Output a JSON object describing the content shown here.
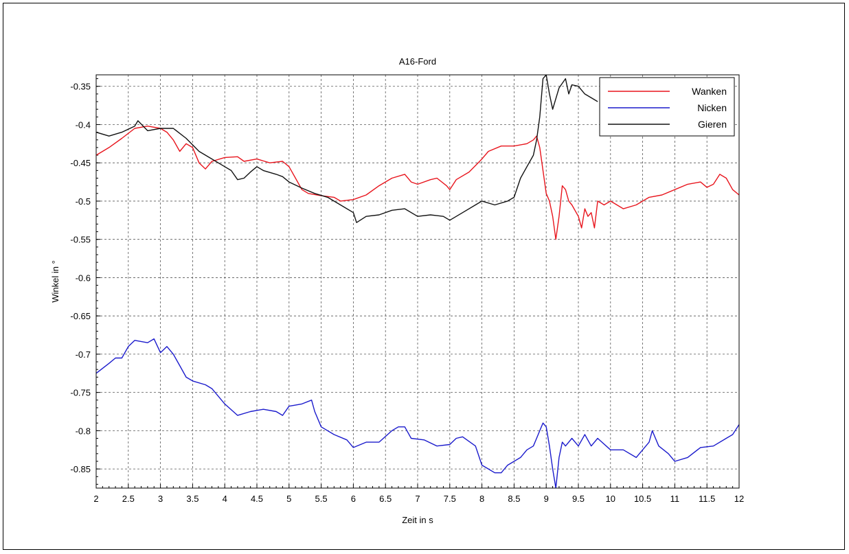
{
  "chart_data": {
    "type": "line",
    "title": "A16-Ford",
    "xlabel": "Zeit in s",
    "ylabel": "Winkel in °",
    "xlim": [
      2,
      12
    ],
    "ylim": [
      -0.875,
      -0.335
    ],
    "grid": true,
    "legend_position": "top-right",
    "x_ticks": [
      "2",
      "2.5",
      "3",
      "3.5",
      "4",
      "4.5",
      "5",
      "5.5",
      "6",
      "6.5",
      "7",
      "7.5",
      "8",
      "8.5",
      "9",
      "9.5",
      "10",
      "10.5",
      "11",
      "11.5",
      "12"
    ],
    "y_ticks": [
      "-0.35",
      "-0.4",
      "-0.45",
      "-0.5",
      "-0.55",
      "-0.6",
      "-0.65",
      "-0.7",
      "-0.75",
      "-0.8",
      "-0.85"
    ],
    "series": [
      {
        "name": "Wanken",
        "color": "#e8141c",
        "points": [
          [
            2.0,
            -0.44
          ],
          [
            2.2,
            -0.43
          ],
          [
            2.4,
            -0.418
          ],
          [
            2.6,
            -0.405
          ],
          [
            2.8,
            -0.402
          ],
          [
            3.0,
            -0.405
          ],
          [
            3.1,
            -0.41
          ],
          [
            3.2,
            -0.42
          ],
          [
            3.3,
            -0.435
          ],
          [
            3.4,
            -0.425
          ],
          [
            3.5,
            -0.43
          ],
          [
            3.6,
            -0.45
          ],
          [
            3.7,
            -0.458
          ],
          [
            3.8,
            -0.448
          ],
          [
            4.0,
            -0.443
          ],
          [
            4.2,
            -0.442
          ],
          [
            4.3,
            -0.448
          ],
          [
            4.5,
            -0.445
          ],
          [
            4.7,
            -0.45
          ],
          [
            4.9,
            -0.448
          ],
          [
            5.0,
            -0.455
          ],
          [
            5.1,
            -0.47
          ],
          [
            5.2,
            -0.485
          ],
          [
            5.3,
            -0.49
          ],
          [
            5.5,
            -0.493
          ],
          [
            5.7,
            -0.495
          ],
          [
            5.8,
            -0.5
          ],
          [
            6.0,
            -0.498
          ],
          [
            6.2,
            -0.492
          ],
          [
            6.4,
            -0.48
          ],
          [
            6.6,
            -0.47
          ],
          [
            6.8,
            -0.465
          ],
          [
            6.9,
            -0.475
          ],
          [
            7.0,
            -0.478
          ],
          [
            7.2,
            -0.472
          ],
          [
            7.3,
            -0.47
          ],
          [
            7.45,
            -0.48
          ],
          [
            7.5,
            -0.485
          ],
          [
            7.6,
            -0.472
          ],
          [
            7.8,
            -0.462
          ],
          [
            8.0,
            -0.445
          ],
          [
            8.1,
            -0.435
          ],
          [
            8.3,
            -0.428
          ],
          [
            8.5,
            -0.428
          ],
          [
            8.7,
            -0.425
          ],
          [
            8.8,
            -0.42
          ],
          [
            8.85,
            -0.415
          ],
          [
            8.9,
            -0.43
          ],
          [
            8.95,
            -0.46
          ],
          [
            9.0,
            -0.49
          ],
          [
            9.05,
            -0.5
          ],
          [
            9.1,
            -0.52
          ],
          [
            9.15,
            -0.55
          ],
          [
            9.2,
            -0.52
          ],
          [
            9.25,
            -0.48
          ],
          [
            9.3,
            -0.485
          ],
          [
            9.35,
            -0.5
          ],
          [
            9.4,
            -0.505
          ],
          [
            9.5,
            -0.52
          ],
          [
            9.55,
            -0.535
          ],
          [
            9.6,
            -0.51
          ],
          [
            9.65,
            -0.52
          ],
          [
            9.7,
            -0.515
          ],
          [
            9.75,
            -0.535
          ],
          [
            9.8,
            -0.5
          ],
          [
            9.9,
            -0.505
          ],
          [
            10.0,
            -0.5
          ],
          [
            10.2,
            -0.51
          ],
          [
            10.4,
            -0.505
          ],
          [
            10.6,
            -0.495
          ],
          [
            10.8,
            -0.492
          ],
          [
            11.0,
            -0.485
          ],
          [
            11.2,
            -0.478
          ],
          [
            11.4,
            -0.475
          ],
          [
            11.5,
            -0.482
          ],
          [
            11.6,
            -0.478
          ],
          [
            11.7,
            -0.465
          ],
          [
            11.8,
            -0.47
          ],
          [
            11.9,
            -0.485
          ],
          [
            12.0,
            -0.492
          ]
        ]
      },
      {
        "name": "Nicken",
        "color": "#1a1acc",
        "points": [
          [
            2.0,
            -0.725
          ],
          [
            2.2,
            -0.712
          ],
          [
            2.3,
            -0.705
          ],
          [
            2.4,
            -0.705
          ],
          [
            2.5,
            -0.69
          ],
          [
            2.6,
            -0.682
          ],
          [
            2.8,
            -0.685
          ],
          [
            2.9,
            -0.68
          ],
          [
            3.0,
            -0.698
          ],
          [
            3.1,
            -0.69
          ],
          [
            3.2,
            -0.7
          ],
          [
            3.3,
            -0.715
          ],
          [
            3.4,
            -0.73
          ],
          [
            3.5,
            -0.735
          ],
          [
            3.7,
            -0.74
          ],
          [
            3.8,
            -0.745
          ],
          [
            3.9,
            -0.755
          ],
          [
            4.0,
            -0.765
          ],
          [
            4.2,
            -0.78
          ],
          [
            4.4,
            -0.775
          ],
          [
            4.6,
            -0.772
          ],
          [
            4.8,
            -0.775
          ],
          [
            4.9,
            -0.78
          ],
          [
            5.0,
            -0.768
          ],
          [
            5.2,
            -0.765
          ],
          [
            5.35,
            -0.76
          ],
          [
            5.4,
            -0.775
          ],
          [
            5.5,
            -0.795
          ],
          [
            5.7,
            -0.805
          ],
          [
            5.9,
            -0.812
          ],
          [
            6.0,
            -0.822
          ],
          [
            6.2,
            -0.815
          ],
          [
            6.4,
            -0.815
          ],
          [
            6.6,
            -0.8
          ],
          [
            6.7,
            -0.795
          ],
          [
            6.8,
            -0.795
          ],
          [
            6.9,
            -0.81
          ],
          [
            7.1,
            -0.812
          ],
          [
            7.3,
            -0.82
          ],
          [
            7.5,
            -0.818
          ],
          [
            7.6,
            -0.81
          ],
          [
            7.7,
            -0.808
          ],
          [
            7.9,
            -0.82
          ],
          [
            8.0,
            -0.845
          ],
          [
            8.1,
            -0.85
          ],
          [
            8.2,
            -0.855
          ],
          [
            8.3,
            -0.855
          ],
          [
            8.4,
            -0.845
          ],
          [
            8.5,
            -0.84
          ],
          [
            8.6,
            -0.835
          ],
          [
            8.7,
            -0.825
          ],
          [
            8.8,
            -0.82
          ],
          [
            8.85,
            -0.81
          ],
          [
            8.9,
            -0.8
          ],
          [
            8.95,
            -0.79
          ],
          [
            9.0,
            -0.795
          ],
          [
            9.05,
            -0.82
          ],
          [
            9.1,
            -0.85
          ],
          [
            9.15,
            -0.875
          ],
          [
            9.2,
            -0.835
          ],
          [
            9.25,
            -0.815
          ],
          [
            9.3,
            -0.82
          ],
          [
            9.4,
            -0.81
          ],
          [
            9.5,
            -0.82
          ],
          [
            9.6,
            -0.805
          ],
          [
            9.7,
            -0.82
          ],
          [
            9.8,
            -0.81
          ],
          [
            10.0,
            -0.825
          ],
          [
            10.2,
            -0.825
          ],
          [
            10.4,
            -0.835
          ],
          [
            10.6,
            -0.815
          ],
          [
            10.65,
            -0.8
          ],
          [
            10.75,
            -0.82
          ],
          [
            10.9,
            -0.83
          ],
          [
            11.0,
            -0.84
          ],
          [
            11.2,
            -0.835
          ],
          [
            11.4,
            -0.822
          ],
          [
            11.6,
            -0.82
          ],
          [
            11.8,
            -0.81
          ],
          [
            11.9,
            -0.805
          ],
          [
            12.0,
            -0.792
          ]
        ]
      },
      {
        "name": "Gieren",
        "color": "#111111",
        "points": [
          [
            2.0,
            -0.41
          ],
          [
            2.2,
            -0.415
          ],
          [
            2.4,
            -0.41
          ],
          [
            2.6,
            -0.402
          ],
          [
            2.65,
            -0.395
          ],
          [
            2.8,
            -0.408
          ],
          [
            3.0,
            -0.405
          ],
          [
            3.2,
            -0.405
          ],
          [
            3.4,
            -0.418
          ],
          [
            3.6,
            -0.435
          ],
          [
            3.8,
            -0.445
          ],
          [
            4.0,
            -0.455
          ],
          [
            4.1,
            -0.46
          ],
          [
            4.2,
            -0.472
          ],
          [
            4.3,
            -0.47
          ],
          [
            4.4,
            -0.462
          ],
          [
            4.5,
            -0.455
          ],
          [
            4.6,
            -0.46
          ],
          [
            4.8,
            -0.465
          ],
          [
            4.9,
            -0.468
          ],
          [
            5.0,
            -0.475
          ],
          [
            5.2,
            -0.483
          ],
          [
            5.4,
            -0.49
          ],
          [
            5.6,
            -0.495
          ],
          [
            5.8,
            -0.505
          ],
          [
            6.0,
            -0.515
          ],
          [
            6.05,
            -0.528
          ],
          [
            6.2,
            -0.52
          ],
          [
            6.4,
            -0.518
          ],
          [
            6.6,
            -0.512
          ],
          [
            6.8,
            -0.51
          ],
          [
            7.0,
            -0.52
          ],
          [
            7.2,
            -0.518
          ],
          [
            7.4,
            -0.52
          ],
          [
            7.5,
            -0.525
          ],
          [
            7.7,
            -0.515
          ],
          [
            7.9,
            -0.505
          ],
          [
            8.0,
            -0.5
          ],
          [
            8.2,
            -0.505
          ],
          [
            8.4,
            -0.5
          ],
          [
            8.5,
            -0.495
          ],
          [
            8.6,
            -0.47
          ],
          [
            8.7,
            -0.455
          ],
          [
            8.8,
            -0.44
          ],
          [
            8.85,
            -0.42
          ],
          [
            8.9,
            -0.39
          ],
          [
            8.95,
            -0.34
          ],
          [
            9.0,
            -0.335
          ],
          [
            9.05,
            -0.36
          ],
          [
            9.1,
            -0.38
          ],
          [
            9.2,
            -0.352
          ],
          [
            9.3,
            -0.34
          ],
          [
            9.35,
            -0.36
          ],
          [
            9.4,
            -0.348
          ],
          [
            9.5,
            -0.35
          ],
          [
            9.6,
            -0.36
          ],
          [
            9.7,
            -0.365
          ],
          [
            9.8,
            -0.37
          ]
        ]
      }
    ]
  }
}
